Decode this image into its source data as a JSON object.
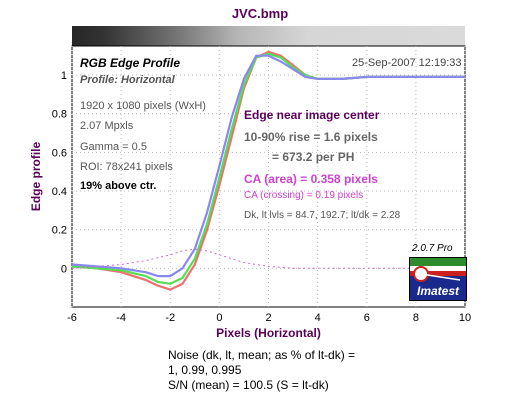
{
  "window": {
    "title": "JVC.bmp"
  },
  "chart_data": {
    "type": "line",
    "title": "RGB Edge Profile",
    "subtitle": "Profile: Horizontal",
    "xlabel": "Pixels (Horizontal)",
    "ylabel": "Edge profile",
    "xlim": [
      -6,
      10
    ],
    "ylim": [
      -0.2,
      1.15
    ],
    "x_ticks": [
      -6,
      -4,
      -2,
      0,
      2,
      4,
      6,
      8,
      10
    ],
    "y_ticks": [
      0,
      0.2,
      0.4,
      0.6,
      0.8,
      1
    ],
    "grid": true,
    "series": [
      {
        "color": "#ee7070",
        "x": [
          -6,
          -5,
          -4,
          -3,
          -2.5,
          -2,
          -1.5,
          -1,
          -0.5,
          0,
          0.5,
          1,
          1.5,
          2,
          2.5,
          3,
          3.5,
          4,
          5,
          6,
          7,
          8,
          9,
          10
        ],
        "y": [
          0.01,
          0.0,
          -0.02,
          -0.06,
          -0.09,
          -0.11,
          -0.08,
          0.02,
          0.2,
          0.43,
          0.68,
          0.93,
          1.09,
          1.12,
          1.1,
          1.05,
          1.0,
          0.98,
          0.98,
          0.99,
          0.99,
          0.99,
          0.99,
          0.99
        ]
      },
      {
        "color": "#55dd55",
        "x": [
          -6,
          -5,
          -4,
          -3,
          -2.5,
          -2,
          -1.5,
          -1,
          -0.5,
          0,
          0.5,
          1,
          1.5,
          2,
          2.5,
          3,
          3.5,
          4,
          5,
          6,
          7,
          8,
          9,
          10
        ],
        "y": [
          0.01,
          0.0,
          -0.01,
          -0.04,
          -0.07,
          -0.08,
          -0.05,
          0.05,
          0.23,
          0.47,
          0.72,
          0.95,
          1.09,
          1.11,
          1.09,
          1.04,
          1.0,
          0.98,
          0.98,
          0.99,
          0.99,
          0.99,
          0.99,
          0.99
        ]
      },
      {
        "color": "#8888ee",
        "x": [
          -6,
          -5,
          -4,
          -3,
          -2.5,
          -2,
          -1.5,
          -1,
          -0.5,
          0,
          0.5,
          1,
          1.5,
          2,
          2.5,
          3,
          3.5,
          4,
          5,
          6,
          7,
          8,
          9,
          10
        ],
        "y": [
          0.02,
          0.01,
          0.0,
          -0.02,
          -0.04,
          -0.04,
          0.0,
          0.1,
          0.29,
          0.53,
          0.78,
          0.98,
          1.1,
          1.1,
          1.07,
          1.03,
          0.99,
          0.98,
          0.98,
          0.99,
          0.99,
          0.99,
          0.99,
          0.99
        ]
      },
      {
        "color": "#cc66cc",
        "dashed": true,
        "x": [
          -6,
          -4,
          -3,
          -2,
          -1.5,
          -1,
          -0.5,
          0,
          0.5,
          1,
          1.5,
          2,
          3,
          4,
          6,
          8,
          10
        ],
        "y": [
          0.0,
          0.02,
          0.04,
          0.07,
          0.09,
          0.1,
          0.09,
          0.07,
          0.05,
          0.03,
          0.02,
          0.01,
          0.0,
          0.0,
          0.0,
          0.0,
          0.0
        ]
      }
    ]
  },
  "image_info": {
    "date": "25-Sep-2007 12:19:33",
    "pixels": "1920 x 1080 pixels (WxH)",
    "mpxls": "2.07 Mpxls",
    "gamma": "Gamma = 0.5",
    "roi": "ROI: 78x241 pixels",
    "above_ctr": "19% above ctr."
  },
  "results": {
    "edge_near_center": "Edge near image center",
    "rise_line1": "10-90% rise = 1.6 pixels",
    "rise_line2": "= 673.2 per PH",
    "ca_area": "CA (area) = 0.358 pixels",
    "ca_crossing": "CA (crossing) = 0.19 pixels",
    "dk_lt": "Dk, lt lvls = 84.7, 192.7;  lt/dk = 2.28"
  },
  "branding": {
    "version": "2.0.7  Pro",
    "logo_text": "Imatest"
  },
  "noise": {
    "line1": "Noise (dk, lt, mean; as % of lt-dk) =",
    "line2": "1,  0.99,  0.995",
    "line3": "S/N (mean) = 100.5  (S = lt-dk)"
  },
  "colors": {
    "title": "#5a005a",
    "axis_label": "#5a005a",
    "ca": "#cc44cc"
  }
}
